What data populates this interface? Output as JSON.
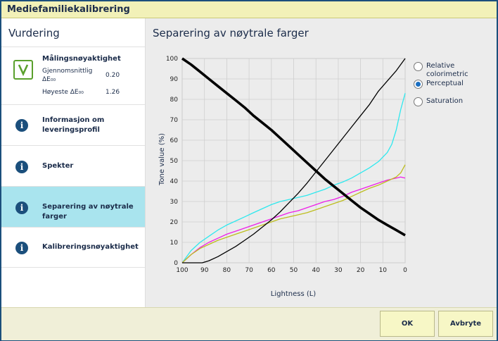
{
  "window": {
    "title": "Mediefamiliekalibrering"
  },
  "sidebar": {
    "header": "Vurdering",
    "accuracy": {
      "title": "Målingsnøyaktighet",
      "avg_label_1": "Gjennomsnittlig",
      "avg_label_2": "ΔE₀₀",
      "avg_value": "0.20",
      "max_label": "Høyeste ΔE₀₀",
      "max_value": "1.26"
    },
    "items": [
      {
        "label_1": "Informasjon om",
        "label_2": "leveringsprofil"
      },
      {
        "label_1": "Spekter"
      },
      {
        "label_1": "Separering av nøytrale farger"
      },
      {
        "label_1": "Kalibreringsnøyaktighet"
      }
    ]
  },
  "main": {
    "title": "Separering av nøytrale farger",
    "options": [
      {
        "label_1": "Relative",
        "label_2": "colorimetric",
        "checked": false
      },
      {
        "label_1": "Perceptual",
        "checked": true
      },
      {
        "label_1": "Saturation",
        "checked": false
      }
    ]
  },
  "footer": {
    "ok_label": "OK",
    "cancel_label": "Avbryte"
  },
  "chart_data": {
    "type": "line",
    "xlabel": "Lightness (L)",
    "ylabel": "Tone value (%)",
    "xlim": [
      100,
      0
    ],
    "ylim": [
      0,
      100
    ],
    "xticks": [
      100,
      90,
      80,
      70,
      60,
      50,
      40,
      30,
      20,
      10,
      0
    ],
    "yticks": [
      0,
      10,
      20,
      30,
      40,
      50,
      60,
      70,
      80,
      90,
      100
    ],
    "grid": true,
    "series": [
      {
        "color": "#2ee8ee",
        "x": [
          100,
          96,
          92,
          88,
          84,
          80,
          76,
          72,
          68,
          64,
          60,
          56,
          52,
          48,
          44,
          40,
          36,
          32,
          28,
          24,
          20,
          16,
          12,
          8,
          6,
          4,
          2,
          0
        ],
        "y": [
          0,
          6,
          10,
          13,
          16,
          18.5,
          20.5,
          22.5,
          24.5,
          26.5,
          28.5,
          30,
          31,
          32,
          33,
          34.5,
          36,
          38,
          39.5,
          41.5,
          44,
          46.5,
          49.5,
          54,
          58,
          65,
          75,
          83
        ]
      },
      {
        "color": "#ee1ee8",
        "x": [
          100,
          96,
          92,
          88,
          84,
          80,
          76,
          72,
          68,
          64,
          60,
          56,
          52,
          48,
          44,
          40,
          36,
          32,
          28,
          24,
          20,
          16,
          12,
          8,
          4,
          2,
          0
        ],
        "y": [
          0,
          4,
          7.5,
          10,
          12,
          14,
          15.5,
          17,
          18.5,
          20,
          21.5,
          23,
          24.5,
          25.5,
          27,
          28.5,
          30,
          31,
          32.5,
          34.5,
          36,
          37.5,
          39,
          40.5,
          41.5,
          42,
          41.5
        ]
      },
      {
        "color": "#bdbd1e",
        "x": [
          100,
          96,
          92,
          88,
          84,
          80,
          76,
          72,
          68,
          64,
          60,
          56,
          52,
          48,
          44,
          40,
          36,
          32,
          28,
          24,
          20,
          16,
          12,
          8,
          4,
          2,
          0
        ],
        "y": [
          0,
          4,
          7,
          9,
          11,
          12.5,
          14,
          15.5,
          17,
          18.5,
          20,
          21.5,
          22.5,
          23.5,
          24.5,
          26,
          27.5,
          29,
          30.5,
          32.5,
          34.5,
          36.5,
          38,
          40,
          42,
          44,
          48
        ]
      },
      {
        "color": "#000000",
        "x": [
          100,
          91,
          88,
          84,
          80,
          76,
          72,
          68,
          64,
          60,
          56,
          52,
          48,
          44,
          40,
          36,
          32,
          28,
          24,
          20,
          16,
          12,
          8,
          4,
          0
        ],
        "y": [
          0,
          0,
          1,
          3,
          5.5,
          8,
          11,
          14,
          17.5,
          21,
          25,
          29.5,
          34,
          39,
          44.5,
          50,
          55.5,
          61,
          66.5,
          72,
          77.5,
          84,
          89,
          94,
          100
        ]
      },
      {
        "color": "#000000",
        "thick": true,
        "x": [
          100,
          96,
          92,
          88,
          84,
          80,
          76,
          72,
          68,
          64,
          60,
          56,
          52,
          48,
          44,
          40,
          36,
          32,
          28,
          24,
          20,
          16,
          12,
          8,
          4,
          0
        ],
        "y": [
          100,
          97,
          93.5,
          90,
          86.5,
          83,
          79.5,
          76,
          72,
          68.5,
          65,
          61,
          57,
          53,
          49,
          45,
          41,
          37.5,
          34,
          30.5,
          27,
          24,
          21,
          18.5,
          16,
          13.5
        ]
      }
    ]
  }
}
